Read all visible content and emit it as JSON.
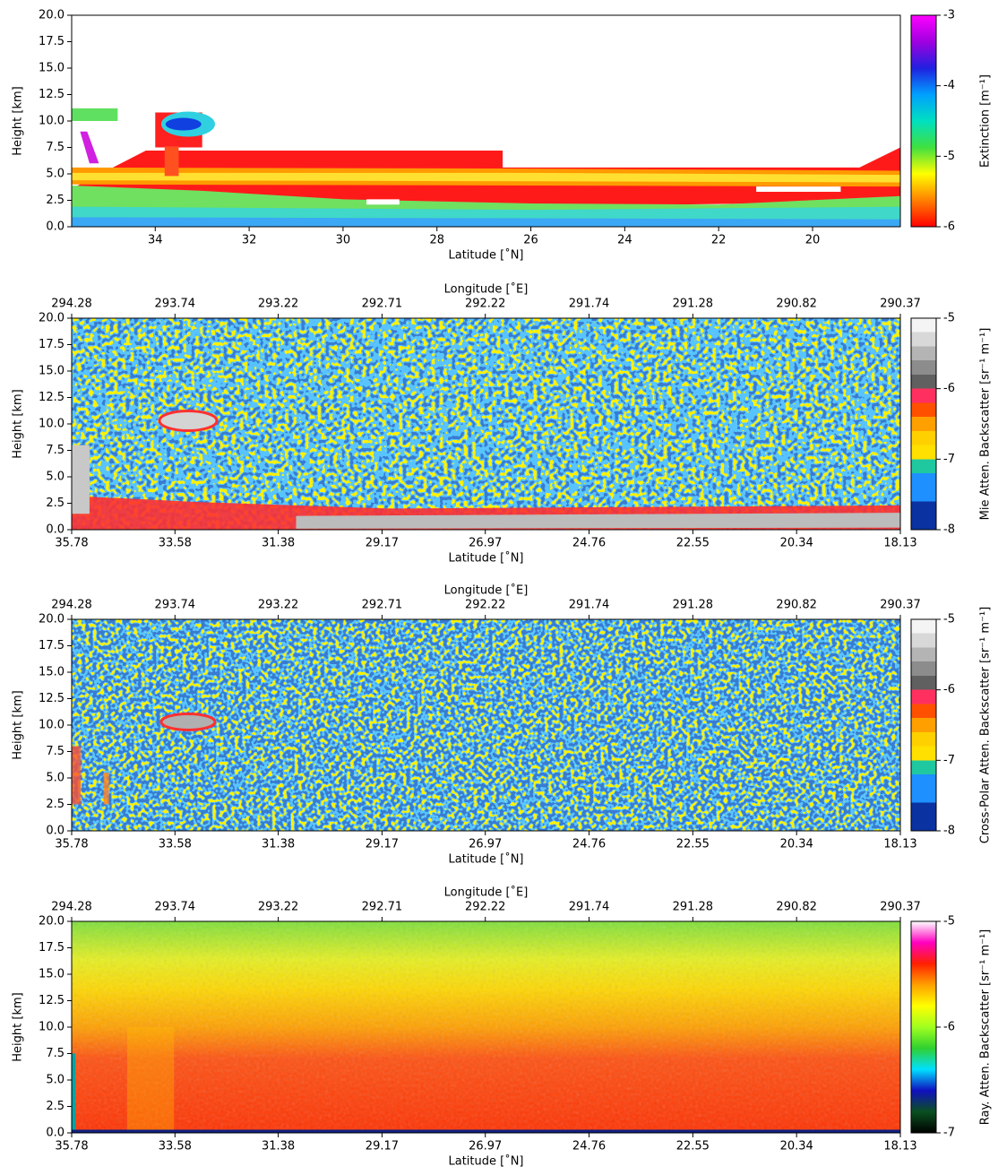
{
  "chart_data": [
    {
      "type": "heatmap",
      "xlabel": "Latitude [˚N]",
      "ylabel": "Height [km]",
      "xlim": [
        35.78,
        18.13
      ],
      "xticks": [
        34,
        32,
        30,
        28,
        26,
        24,
        22,
        20
      ],
      "ylim": [
        0,
        20
      ],
      "yticks": [
        {
          "value": 0,
          "label": "0.0"
        },
        2.5,
        {
          "value": 5,
          "label": "5.0"
        },
        7.5,
        {
          "value": 10,
          "label": "10.0"
        },
        12.5,
        {
          "value": 15,
          "label": "15.0"
        },
        17.5,
        {
          "value": 20,
          "label": "20.0"
        }
      ],
      "colorbar": {
        "label": "Extinction [m⁻¹]",
        "lim": [
          -6,
          -3
        ],
        "ticks": [
          -6,
          -5,
          -4,
          -3
        ],
        "discrete": false,
        "colors": [
          "#ff0000",
          "#ff8000",
          "#ffff00",
          "#40e040",
          "#00e0c0",
          "#00a0ff",
          "#2020e0",
          "#a000e0",
          "#ff00ff"
        ]
      }
    },
    {
      "type": "heatmap",
      "xlabel": "Latitude [˚N]",
      "ylabel": "Height [km]",
      "x2label": "Longitude [˚E]",
      "xlim": [
        35.78,
        18.13
      ],
      "xticks": [
        35.78,
        33.58,
        31.38,
        29.17,
        26.97,
        24.76,
        22.55,
        20.34,
        18.13
      ],
      "x2ticks": [
        "294.28",
        "293.74",
        "293.22",
        "292.71",
        "292.22",
        "291.74",
        "291.28",
        "290.82",
        "290.37"
      ],
      "ylim": [
        0,
        20
      ],
      "yticks": [
        {
          "value": 0,
          "label": "0.0"
        },
        2.5,
        {
          "value": 5,
          "label": "5.0"
        },
        7.5,
        {
          "value": 10,
          "label": "10.0"
        },
        12.5,
        {
          "value": 15,
          "label": "15.0"
        },
        17.5,
        {
          "value": 20,
          "label": "20.0"
        }
      ],
      "colorbar": {
        "label": "Mie Atten. Backscatter [sr⁻¹ m⁻¹]",
        "lim": [
          -8,
          -5
        ],
        "ticks": [
          -8,
          -7,
          -6,
          -5
        ],
        "discrete": true,
        "colors": [
          "#0a32a0",
          "#0a32a0",
          "#1e90ff",
          "#1e90ff",
          "#20c8a0",
          "#ffe000",
          "#ffd000",
          "#ffa000",
          "#ff5000",
          "#ff3060",
          "#606060",
          "#8c8c8c",
          "#b4b4b4",
          "#d8d8d8",
          "#f4f4f4"
        ]
      }
    },
    {
      "type": "heatmap",
      "xlabel": "Latitude [˚N]",
      "ylabel": "Height [km]",
      "x2label": "Longitude [˚E]",
      "xlim": [
        35.78,
        18.13
      ],
      "xticks": [
        35.78,
        33.58,
        31.38,
        29.17,
        26.97,
        24.76,
        22.55,
        20.34,
        18.13
      ],
      "x2ticks": [
        "294.28",
        "293.74",
        "293.22",
        "292.71",
        "292.22",
        "291.74",
        "291.28",
        "290.82",
        "290.37"
      ],
      "ylim": [
        0,
        20
      ],
      "yticks": [
        {
          "value": 0,
          "label": "0.0"
        },
        2.5,
        {
          "value": 5,
          "label": "5.0"
        },
        7.5,
        {
          "value": 10,
          "label": "10.0"
        },
        12.5,
        {
          "value": 15,
          "label": "15.0"
        },
        17.5,
        {
          "value": 20,
          "label": "20.0"
        }
      ],
      "colorbar": {
        "label": "Cross-Polar Atten. Backscatter [sr⁻¹ m⁻¹]",
        "lim": [
          -8,
          -5
        ],
        "ticks": [
          -8,
          -7,
          -6,
          -5
        ],
        "discrete": true,
        "colors": [
          "#0a32a0",
          "#0a32a0",
          "#1e90ff",
          "#1e90ff",
          "#20c8a0",
          "#ffe000",
          "#ffd000",
          "#ffa000",
          "#ff5000",
          "#ff3060",
          "#606060",
          "#8c8c8c",
          "#b4b4b4",
          "#d8d8d8",
          "#f4f4f4"
        ]
      }
    },
    {
      "type": "heatmap",
      "xlabel": "Latitude [˚N]",
      "ylabel": "Height [km]",
      "x2label": "Longitude [˚E]",
      "xlim": [
        35.78,
        18.13
      ],
      "xticks": [
        35.78,
        33.58,
        31.38,
        29.17,
        26.97,
        24.76,
        22.55,
        20.34,
        18.13
      ],
      "x2ticks": [
        "294.28",
        "293.74",
        "293.22",
        "292.71",
        "292.22",
        "291.74",
        "291.28",
        "290.82",
        "290.37"
      ],
      "ylim": [
        0,
        20
      ],
      "yticks": [
        {
          "value": 0,
          "label": "0.0"
        },
        2.5,
        {
          "value": 5,
          "label": "5.0"
        },
        7.5,
        {
          "value": 10,
          "label": "10.0"
        },
        12.5,
        {
          "value": 15,
          "label": "15.0"
        },
        17.5,
        {
          "value": 20,
          "label": "20.0"
        }
      ],
      "colorbar": {
        "label": "Ray. Atten. Backscatter [sr⁻¹ m⁻¹]",
        "lim": [
          -7,
          -5
        ],
        "ticks": [
          -7,
          -6,
          -5
        ],
        "discrete": false,
        "colors": [
          "#000000",
          "#0a5020",
          "#1010c0",
          "#00e0ff",
          "#30d030",
          "#a0ff20",
          "#ffff00",
          "#ffa000",
          "#ff2000",
          "#ff00c0",
          "#ffffff"
        ]
      }
    }
  ]
}
